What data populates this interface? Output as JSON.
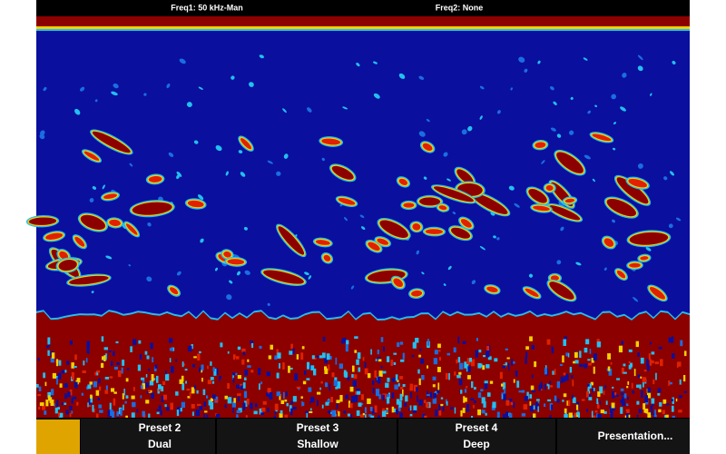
{
  "status_bar": {
    "freq1": "Freq1: 50 kHz-Man",
    "freq2": "Freq2: None"
  },
  "softkeys": [
    {
      "line1": "Preset 2",
      "line2": "Dual"
    },
    {
      "line1": "Preset 3",
      "line2": "Shallow"
    },
    {
      "line1": "Preset 4",
      "line2": "Deep"
    },
    {
      "label": "Presentation..."
    }
  ]
}
